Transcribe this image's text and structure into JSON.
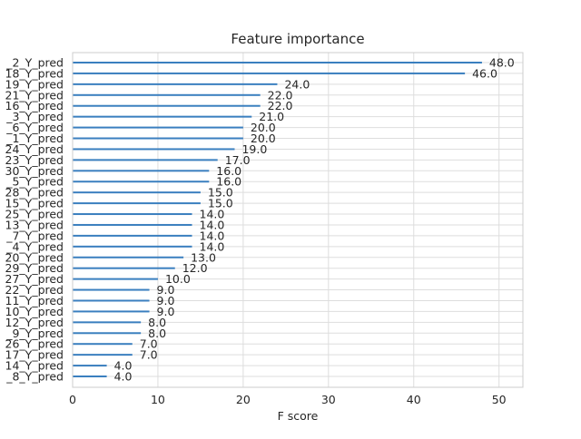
{
  "chart_data": {
    "type": "bar",
    "orientation": "horizontal",
    "title": "Feature importance",
    "xlabel": "F score",
    "ylabel": "",
    "xlim": [
      0,
      52.8
    ],
    "x_ticks": [
      0,
      10,
      20,
      30,
      40,
      50
    ],
    "grid": true,
    "bar_color": "#3a7fbf",
    "categories": [
      "_2_Y_pred",
      "18_Y_pred",
      "19_Y_pred",
      "21_Y_pred",
      "16_Y_pred",
      "_3_Y_pred",
      "_6_Y_pred",
      "_1_Y_pred",
      "24_Y_pred",
      "23_Y_pred",
      "30_Y_pred",
      "_5_Y_pred",
      "28_Y_pred",
      "15_Y_pred",
      "25_Y_pred",
      "13_Y_pred",
      "_7_Y_pred",
      "_4_Y_pred",
      "20_Y_pred",
      "29_Y_pred",
      "27_Y_pred",
      "22_Y_pred",
      "11_Y_pred",
      "10_Y_pred",
      "12_Y_pred",
      "_9_Y_pred",
      "26_Y_pred",
      "17_Y_pred",
      "14_Y_pred",
      "_8_Y_pred"
    ],
    "values": [
      48.0,
      46.0,
      24.0,
      22.0,
      22.0,
      21.0,
      20.0,
      20.0,
      19.0,
      17.0,
      16.0,
      16.0,
      15.0,
      15.0,
      14.0,
      14.0,
      14.0,
      14.0,
      13.0,
      12.0,
      10.0,
      9.0,
      9.0,
      9.0,
      8.0,
      8.0,
      7.0,
      7.0,
      4.0,
      4.0
    ],
    "value_labels": [
      "48.0",
      "46.0",
      "24.0",
      "22.0",
      "22.0",
      "21.0",
      "20.0",
      "20.0",
      "19.0",
      "17.0",
      "16.0",
      "16.0",
      "15.0",
      "15.0",
      "14.0",
      "14.0",
      "14.0",
      "14.0",
      "13.0",
      "12.0",
      "10.0",
      "9.0",
      "9.0",
      "9.0",
      "8.0",
      "8.0",
      "7.0",
      "7.0",
      "4.0",
      "4.0"
    ]
  }
}
